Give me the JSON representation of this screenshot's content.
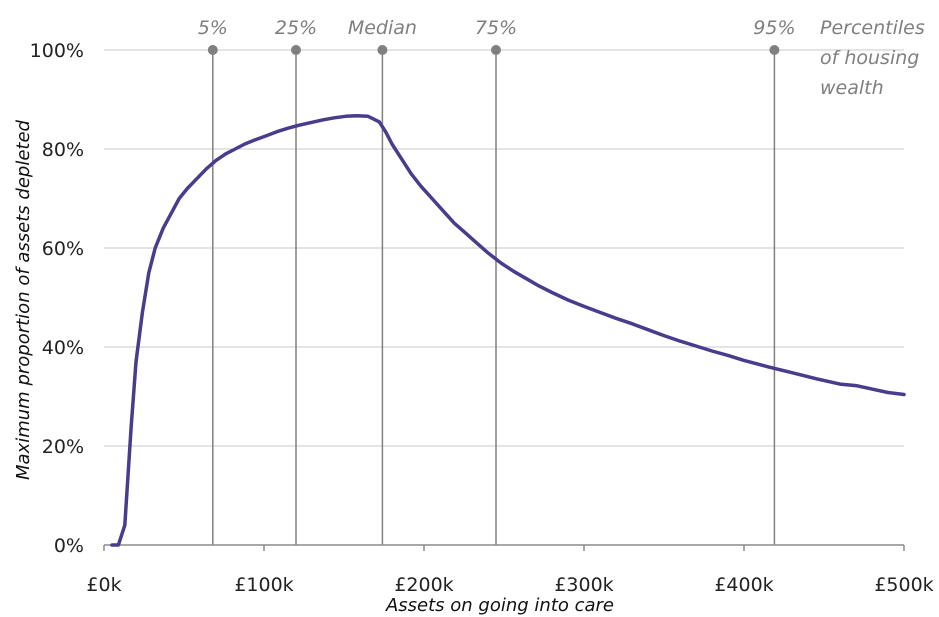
{
  "chart_data": {
    "type": "line",
    "xlabel": "Assets on going into care",
    "ylabel": "Maximum proportion of assets depleted",
    "xlim": [
      0,
      500
    ],
    "ylim": [
      0,
      100
    ],
    "x_ticks": [
      0,
      100,
      200,
      300,
      400,
      500
    ],
    "x_tick_labels": [
      "£0k",
      "£100k",
      "£200k",
      "£300k",
      "£400k",
      "£500k"
    ],
    "y_ticks": [
      0,
      20,
      40,
      60,
      80,
      100
    ],
    "y_tick_labels": [
      "0%",
      "20%",
      "40%",
      "60%",
      "80%",
      "100%"
    ],
    "grid": "horizontal",
    "series_color": "#4b3b8c",
    "reference_line_color": "#808080",
    "series": [
      {
        "x": [
          5,
          9,
          13,
          17,
          20,
          24,
          28,
          32,
          37,
          42,
          47,
          52,
          58,
          64,
          70,
          76,
          82,
          88,
          94,
          100,
          108,
          115,
          122,
          130,
          137,
          144,
          151,
          158,
          165,
          172,
          176,
          180,
          186,
          192,
          198,
          205,
          212,
          219,
          226,
          233,
          240,
          248,
          256,
          264,
          272,
          280,
          290,
          300,
          310,
          320,
          330,
          340,
          350,
          360,
          370,
          380,
          390,
          400,
          415,
          430,
          445,
          460,
          470,
          480,
          490,
          500
        ],
        "y": [
          0,
          0,
          4,
          24,
          37,
          47,
          55,
          60,
          64,
          67,
          70,
          72,
          74,
          76,
          77.7,
          79,
          80,
          81,
          81.8,
          82.5,
          83.5,
          84.2,
          84.8,
          85.4,
          85.9,
          86.3,
          86.6,
          86.7,
          86.6,
          85.5,
          83.5,
          81,
          78,
          75,
          72.5,
          70,
          67.5,
          65,
          63,
          61,
          59,
          57,
          55.3,
          53.8,
          52.3,
          51,
          49.5,
          48.2,
          47,
          45.8,
          44.7,
          43.5,
          42.3,
          41.2,
          40.2,
          39.2,
          38.3,
          37.3,
          36,
          34.8,
          33.6,
          32.5,
          32.2,
          31.5,
          30.8,
          30.4
        ]
      }
    ],
    "reference_lines": [
      {
        "x": 68,
        "label": "5%"
      },
      {
        "x": 120,
        "label": "25%"
      },
      {
        "x": 174,
        "label": "Median"
      },
      {
        "x": 245,
        "label": "75%"
      },
      {
        "x": 419,
        "label": "95%"
      }
    ],
    "annotation": "Percentiles of housing wealth"
  }
}
